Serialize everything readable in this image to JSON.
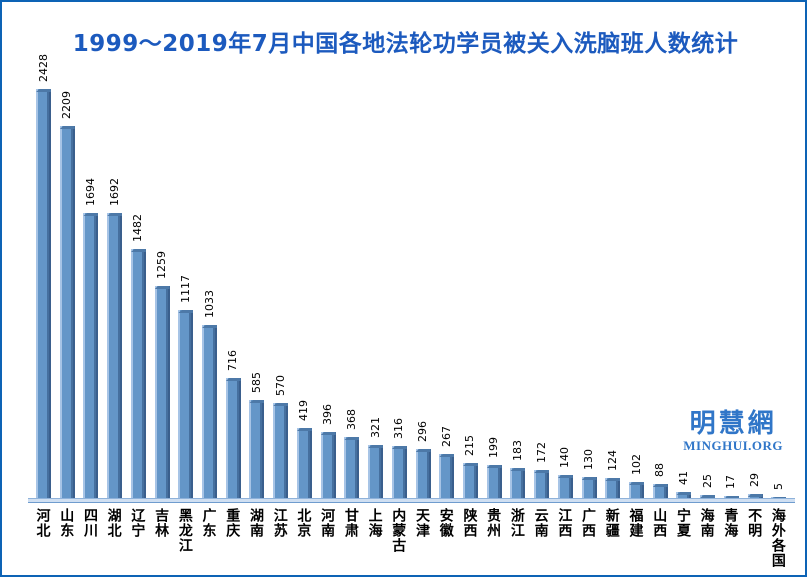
{
  "title": "1999～2019年7月中国各地法轮功学员被关入洗脑班人数统计",
  "logo": {
    "cjk": "明慧網",
    "latin": "MINGHUI.ORG"
  },
  "colors": {
    "frame_border": "#0d63b5",
    "title_text": "#1c5abe",
    "bar_face": "#6496c8",
    "bar_highlight": "#a7c4e6",
    "bar_shadow": "#3a5f8d",
    "baseline_fill": "#cfdff2",
    "logo_text": "#3076c8",
    "label_text": "#000000"
  },
  "chart_data": {
    "type": "bar",
    "title": "1999～2019年7月中国各地法轮功学员被关入洗脑班人数统计",
    "xlabel": "",
    "ylabel": "",
    "ylim": [
      0,
      2428
    ],
    "grid": false,
    "legend": "none",
    "value_labels": "vertical, above bars",
    "category_labels": "vertical CJK below axis",
    "categories": [
      "河北",
      "山东",
      "四川",
      "湖北",
      "辽宁",
      "吉林",
      "黑龙江",
      "广东",
      "重庆",
      "湖南",
      "江苏",
      "北京",
      "河南",
      "甘肃",
      "上海",
      "内蒙古",
      "天津",
      "安徽",
      "陕西",
      "贵州",
      "浙江",
      "云南",
      "江西",
      "广西",
      "新疆",
      "福建",
      "山西",
      "宁夏",
      "海南",
      "青海",
      "不明",
      "海外各国"
    ],
    "values": [
      2428,
      2209,
      1694,
      1692,
      1482,
      1259,
      1117,
      1033,
      716,
      585,
      570,
      419,
      396,
      368,
      321,
      316,
      296,
      267,
      215,
      199,
      183,
      172,
      140,
      130,
      124,
      102,
      88,
      41,
      25,
      17,
      29,
      5
    ]
  }
}
